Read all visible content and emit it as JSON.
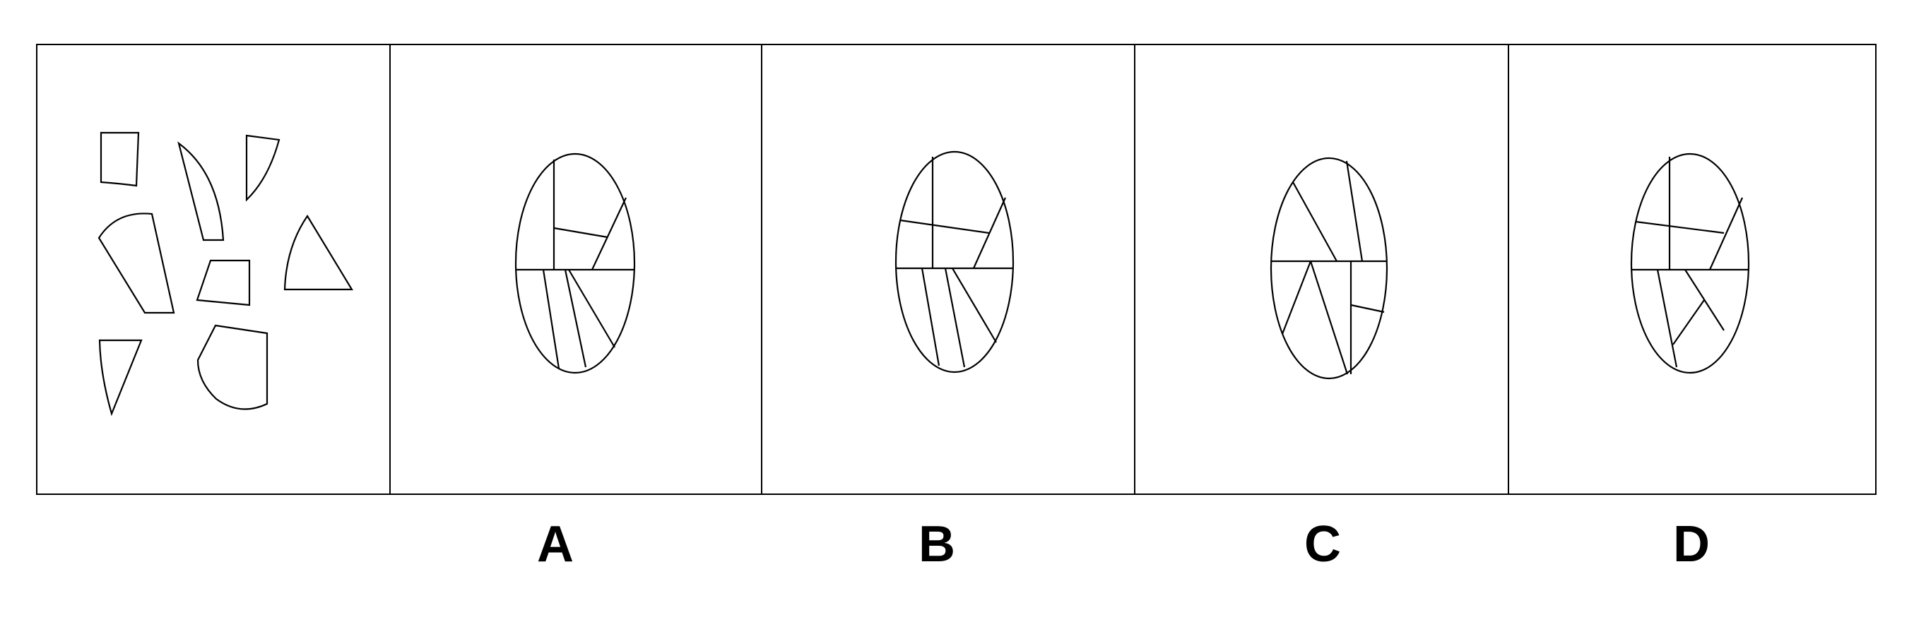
{
  "options": [
    {
      "id": "A",
      "label": "A"
    },
    {
      "id": "B",
      "label": "B"
    },
    {
      "id": "C",
      "label": "C"
    },
    {
      "id": "D",
      "label": "D"
    }
  ],
  "panels": {
    "question": {
      "pieces": 8
    },
    "A": {
      "segments": 7
    },
    "B": {
      "segments": 7
    },
    "C": {
      "segments": 7
    },
    "D": {
      "segments": 7
    }
  }
}
